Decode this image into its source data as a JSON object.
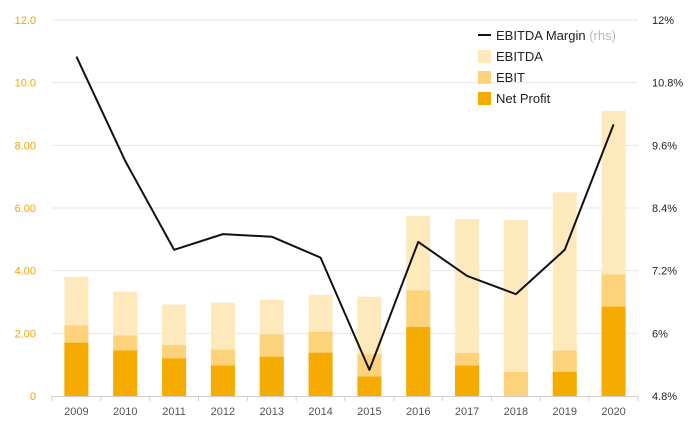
{
  "chart_data": {
    "type": "bar",
    "categories": [
      "2009",
      "2010",
      "2011",
      "2012",
      "2013",
      "2014",
      "2015",
      "2016",
      "2017",
      "2018",
      "2019",
      "2020"
    ],
    "series": [
      {
        "name": "EBITDA",
        "kind": "bar-total",
        "color": "#fde9bb",
        "values": [
          3.8,
          3.33,
          2.92,
          2.98,
          3.07,
          3.23,
          3.17,
          5.75,
          5.65,
          5.62,
          6.5,
          9.1
        ]
      },
      {
        "name": "EBIT",
        "kind": "bar-mid",
        "color": "#fcd37a",
        "values": [
          2.25,
          1.93,
          1.63,
          1.48,
          1.97,
          2.05,
          1.33,
          3.37,
          1.37,
          0.77,
          1.45,
          3.88
        ]
      },
      {
        "name": "Net Profit",
        "kind": "bar-base",
        "color": "#f5ab00",
        "values": [
          1.7,
          1.45,
          1.2,
          0.97,
          1.25,
          1.38,
          0.62,
          2.2,
          0.97,
          0.0,
          0.77,
          2.85
        ]
      },
      {
        "name": "EBITDA Margin",
        "name_suffix": "(rhs)",
        "kind": "line",
        "axis": "right",
        "color": "#111111",
        "values": [
          11.3,
          9.3,
          7.6,
          7.9,
          7.85,
          7.45,
          5.3,
          7.75,
          7.1,
          6.75,
          7.6,
          10.0
        ]
      }
    ],
    "y_left": {
      "ticks": [
        "0",
        "2.00",
        "4.00",
        "6.00",
        "8.00",
        "10.0",
        "12.0"
      ],
      "ylim": [
        0,
        12
      ]
    },
    "y_right": {
      "ticks": [
        "4.8%",
        "6%",
        "7.2%",
        "8.4%",
        "9.6%",
        "10.8%",
        "12%"
      ],
      "ylim": [
        4.8,
        12
      ]
    },
    "grid": true,
    "legend_position": "top-right",
    "title": "",
    "xlabel": "",
    "ylabel": ""
  }
}
